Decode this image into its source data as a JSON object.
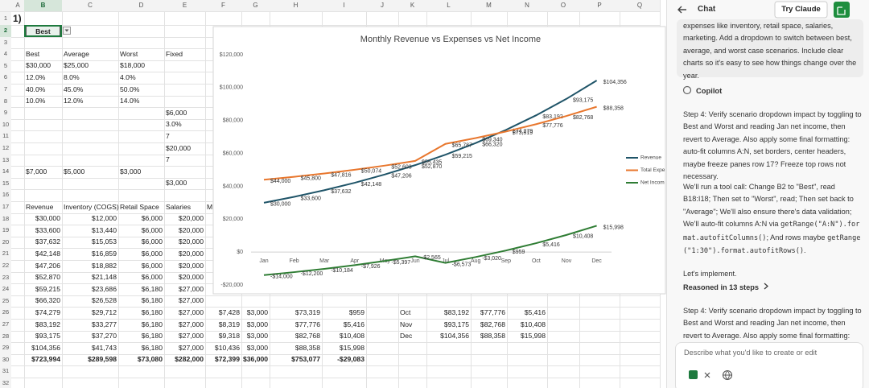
{
  "sheet": {
    "columns": [
      "A",
      "B",
      "C",
      "D",
      "E",
      "F",
      "G",
      "H",
      "I",
      "J",
      "K",
      "L",
      "M",
      "N",
      "O",
      "P",
      "Q"
    ],
    "rows": [
      1,
      2,
      3,
      4,
      5,
      6,
      7,
      8,
      9,
      10,
      11,
      12,
      13,
      14,
      15,
      16,
      17,
      18,
      19,
      20,
      21,
      22,
      23,
      24,
      25,
      26,
      27,
      28,
      29,
      30,
      31,
      32
    ],
    "cells": {
      "1": {
        "A": "1)"
      },
      "2": {
        "B": "Best"
      },
      "4": {
        "B": "Best",
        "C": "Average",
        "D": "Worst",
        "E": "Fixed"
      },
      "5": {
        "B": "$30,000",
        "C": "$25,000",
        "D": "$18,000"
      },
      "6": {
        "B": "12.0%",
        "C": "8.0%",
        "D": "4.0%"
      },
      "7": {
        "B": "40.0%",
        "C": "45.0%",
        "D": "50.0%"
      },
      "8": {
        "B": "10.0%",
        "C": "12.0%",
        "D": "14.0%"
      },
      "9": {
        "E": "$6,000"
      },
      "10": {
        "E": "3.0%"
      },
      "11": {
        "E": "7"
      },
      "12": {
        "E": "$20,000"
      },
      "13": {
        "E": "7"
      },
      "14": {
        "B": "$7,000",
        "C": "$5,000",
        "D": "$3,000"
      },
      "15": {
        "E": "$3,000"
      },
      "17": {
        "B": "Revenue",
        "C": "Inventory (COGS)",
        "D": "Retail Space",
        "E": "Salaries",
        "F": "Ma"
      },
      "18": {
        "B": "$30,000",
        "C": "$12,000",
        "D": "$6,000",
        "E": "$20,000"
      },
      "19": {
        "B": "$33,600",
        "C": "$13,440",
        "D": "$6,000",
        "E": "$20,000"
      },
      "20": {
        "B": "$37,632",
        "C": "$15,053",
        "D": "$6,000",
        "E": "$20,000"
      },
      "21": {
        "B": "$42,148",
        "C": "$16,859",
        "D": "$6,000",
        "E": "$20,000"
      },
      "22": {
        "B": "$47,206",
        "C": "$18,882",
        "D": "$6,000",
        "E": "$20,000"
      },
      "23": {
        "B": "$52,870",
        "C": "$21,148",
        "D": "$6,000",
        "E": "$20,000"
      },
      "24": {
        "B": "$59,215",
        "C": "$23,686",
        "D": "$6,180",
        "E": "$27,000"
      },
      "25": {
        "B": "$66,320",
        "C": "$26,528",
        "D": "$6,180",
        "E": "$27,000"
      },
      "26": {
        "B": "$74,279",
        "C": "$29,712",
        "D": "$6,180",
        "E": "$27,000",
        "F": "$7,428",
        "G": "$3,000",
        "H": "$73,319",
        "I": "$959",
        "K": "Oct",
        "L": "$83,192",
        "M": "$77,776",
        "N": "$5,416"
      },
      "27": {
        "B": "$83,192",
        "C": "$33,277",
        "D": "$6,180",
        "E": "$27,000",
        "F": "$8,319",
        "G": "$3,000",
        "H": "$77,776",
        "I": "$5,416",
        "K": "Nov",
        "L": "$93,175",
        "M": "$82,768",
        "N": "$10,408"
      },
      "28": {
        "B": "$93,175",
        "C": "$37,270",
        "D": "$6,180",
        "E": "$27,000",
        "F": "$9,318",
        "G": "$3,000",
        "H": "$82,768",
        "I": "$10,408",
        "K": "Dec",
        "L": "$104,356",
        "M": "$88,358",
        "N": "$15,998"
      },
      "29": {
        "B": "$104,356",
        "C": "$41,743",
        "D": "$6,180",
        "E": "$27,000",
        "F": "$10,436",
        "G": "$3,000",
        "H": "$88,358",
        "I": "$15,998"
      },
      "30": {
        "B": "$723,994",
        "C": "$289,598",
        "D": "$73,080",
        "E": "$282,000",
        "F": "$72,399",
        "G": "$36,000",
        "H": "$753,077",
        "I": "-$29,083"
      }
    }
  },
  "chart_data": {
    "type": "line",
    "title": "Monthly Revenue vs Expenses vs Net Income",
    "categories": [
      "Jan",
      "Feb",
      "Mar",
      "Apr",
      "May",
      "Jun",
      "Jul",
      "Aug",
      "Sep",
      "Oct",
      "Nov",
      "Dec"
    ],
    "series": [
      {
        "name": "Revenue",
        "color": "#1f5468",
        "values": [
          30000,
          33600,
          37632,
          42148,
          47206,
          52870,
          59215,
          66320,
          74279,
          83192,
          93175,
          104356
        ],
        "value_labels": [
          "$30,000",
          "$33,600",
          "$37,632",
          "$42,148",
          "$47,206",
          "$52,870",
          "$59,215",
          "$66,320",
          "$74,279",
          "$83,192",
          "$93,175",
          "$104,356"
        ]
      },
      {
        "name": "Total Expe",
        "color": "#e8772e",
        "values": [
          44000,
          45800,
          47816,
          50074,
          52603,
          55435,
          65787,
          69340,
          73319,
          77776,
          82768,
          88358
        ],
        "value_labels": [
          "$44,000",
          "$45,800",
          "$47,816",
          "$50,074",
          "$52,603",
          "$55,435",
          "$65,787",
          "$69,340",
          "$73,319",
          "$77,776",
          "$82,768",
          "$88,358"
        ]
      },
      {
        "name": "Net Incom",
        "color": "#2f7d34",
        "values": [
          -14000,
          -12200,
          -10184,
          -7926,
          -5397,
          -2565,
          -6573,
          -3020,
          959,
          5416,
          10408,
          15998
        ],
        "value_labels": [
          "-$14,000",
          "-$12,200",
          "-$10,184",
          "-$7,926",
          "-$5,397",
          "-$2,565",
          "-$6,573",
          "-$3,020",
          "$959",
          "$5,416",
          "$10,408",
          "$15,998"
        ]
      }
    ],
    "ylim": [
      -20000,
      120000
    ],
    "yticks": [
      {
        "value": 120000,
        "label": "$120,000"
      },
      {
        "value": 100000,
        "label": "$100,000"
      },
      {
        "value": 80000,
        "label": "$80,000"
      },
      {
        "value": 60000,
        "label": "$60,000"
      },
      {
        "value": 40000,
        "label": "$40,000"
      },
      {
        "value": 20000,
        "label": "$20,000"
      },
      {
        "value": 0,
        "label": "$0"
      },
      {
        "value": -20000,
        "label": "-$20,000"
      }
    ],
    "grid": false,
    "legend": "right"
  },
  "chat": {
    "title": "Chat",
    "button": "Try Claude",
    "user_message": "expenses like inventory, retail space, salaries, marketing. Add a dropdown to switch between best, average, and worst case scenarios. Include clear charts so it's easy to see how things change over the year.",
    "assistant": "Copilot",
    "step": "Step 4: Verify scenario dropdown impact by toggling to Best and Worst and reading Jan net income, then revert to Average. Also apply some final formatting: auto-fit columns A:N, set borders, center headers, maybe freeze panes row 17? Freeze top rows not necessary.",
    "plan": [
      "We'll run a tool call: Change B2 to \"Best\", read B18:I18; Then set to \"Worst\", read; Then set back to \"Average\"; We'll also ensure there's data validation; We'll auto-fit columns A:N via ",
      "getRange(\"A:N\").format.autofitColumns()",
      "; And rows maybe ",
      "getRange(\"1:30\").format.autofitRows()",
      "."
    ],
    "implement": "Let's implement.",
    "reasoned": "Reasoned in 13 steps",
    "step_repeat": "Step 4: Verify scenario dropdown impact by toggling to Best and Worst and reading Jan net income, then revert to Average. Also apply some final formatting: auto-fit columns A:N, set borders, center headers, maybe freeze panes row 17? Freeze top rows not necessary.",
    "placeholder": "Describe what you'd like to create or edit"
  }
}
